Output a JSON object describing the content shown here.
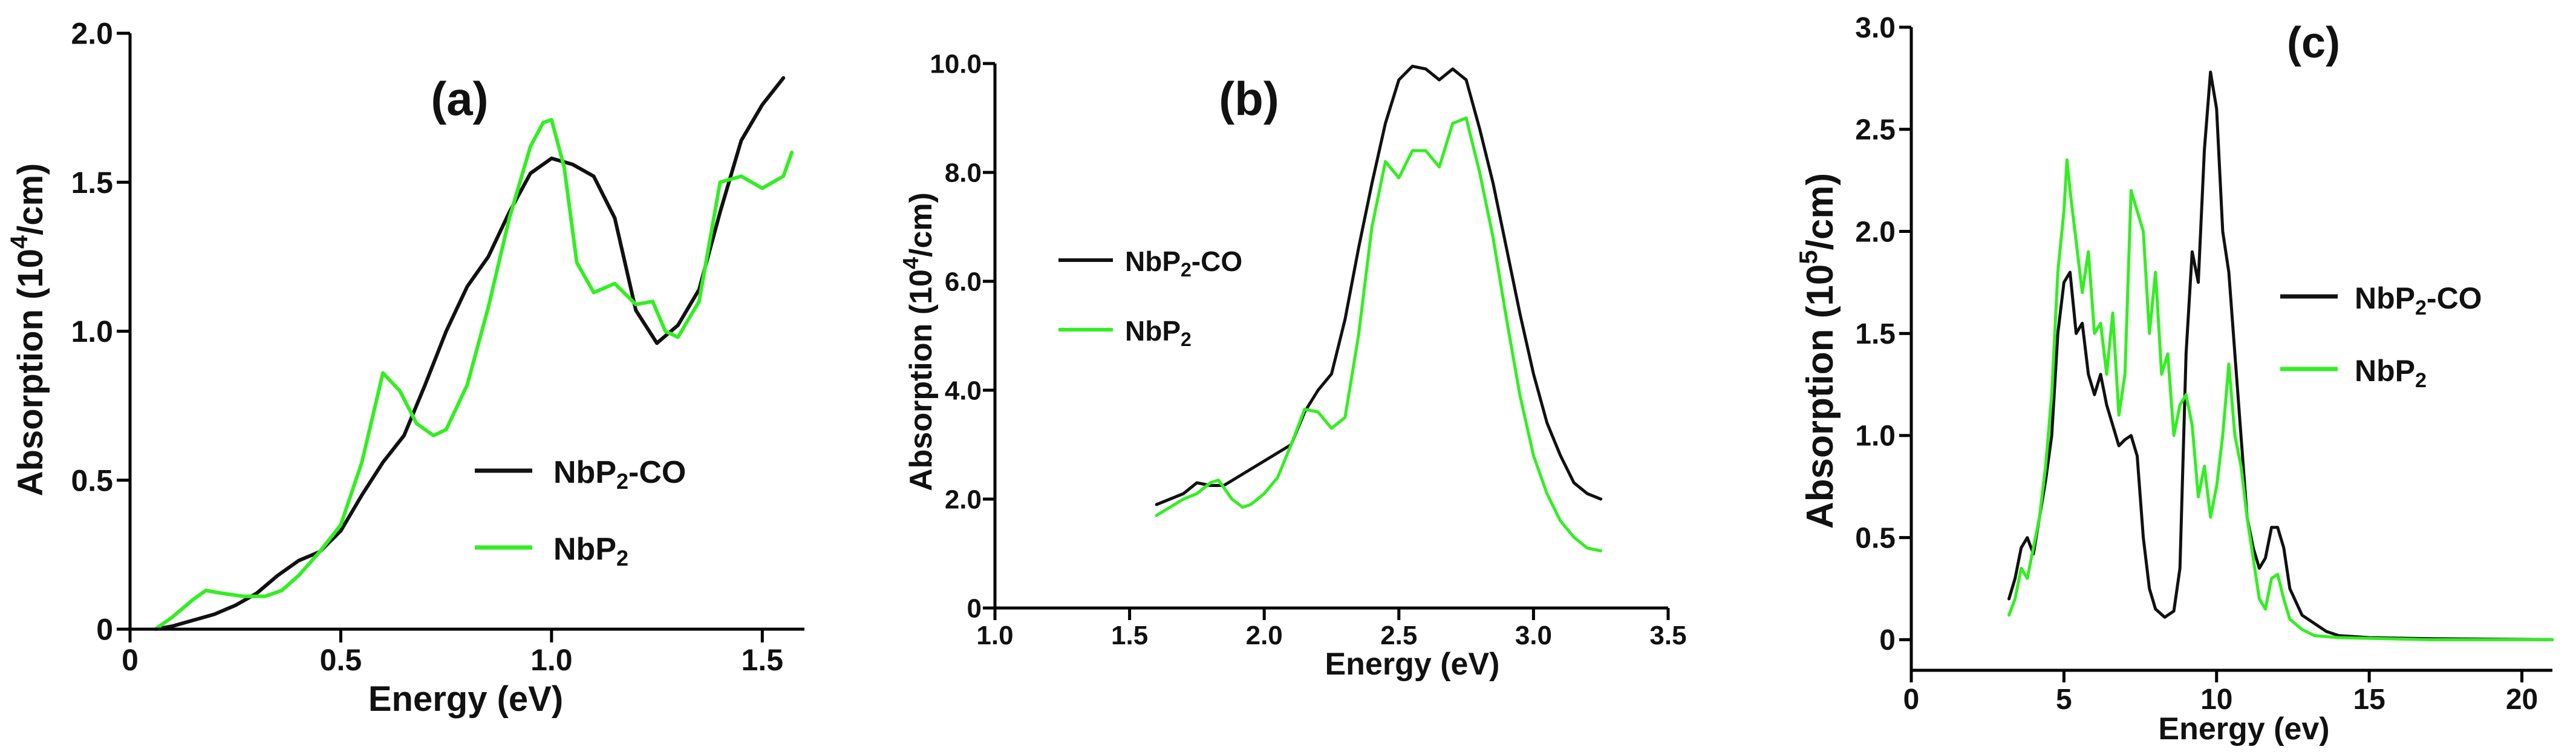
{
  "colors": {
    "co": "#111111",
    "pristine": "#33ee22"
  },
  "chart_data": [
    {
      "id": "a",
      "type": "line",
      "panel_label": "(a)",
      "xlabel": "Energy (eV)",
      "ylabel": {
        "base": "Absorption (10",
        "sup": "4",
        "tail": "/cm)"
      },
      "xlim": [
        0,
        1.6
      ],
      "ylim": [
        0,
        2.0
      ],
      "xticks": [
        0,
        0.5,
        1.0,
        1.5
      ],
      "xtick_labels": [
        "0",
        "0.5",
        "1.0",
        "1.5"
      ],
      "yticks": [
        0,
        0.5,
        1.0,
        1.5,
        2.0
      ],
      "ytick_labels": [
        "0",
        "0.5",
        "1.0",
        "1.5",
        "2.0"
      ],
      "legend": [
        {
          "base": "NbP",
          "sub": "2",
          "tail": "-CO",
          "color_key": "co"
        },
        {
          "base": "NbP",
          "sub": "2",
          "tail": "",
          "color_key": "pristine"
        }
      ],
      "series": [
        {
          "name": "NbP2-CO",
          "color_key": "co",
          "points": [
            [
              0.06,
              0.0
            ],
            [
              0.1,
              0.01
            ],
            [
              0.15,
              0.03
            ],
            [
              0.2,
              0.05
            ],
            [
              0.25,
              0.08
            ],
            [
              0.3,
              0.12
            ],
            [
              0.35,
              0.18
            ],
            [
              0.4,
              0.23
            ],
            [
              0.45,
              0.26
            ],
            [
              0.5,
              0.33
            ],
            [
              0.55,
              0.45
            ],
            [
              0.6,
              0.56
            ],
            [
              0.65,
              0.65
            ],
            [
              0.7,
              0.82
            ],
            [
              0.75,
              1.0
            ],
            [
              0.8,
              1.15
            ],
            [
              0.85,
              1.25
            ],
            [
              0.9,
              1.4
            ],
            [
              0.95,
              1.53
            ],
            [
              1.0,
              1.58
            ],
            [
              1.05,
              1.56
            ],
            [
              1.1,
              1.52
            ],
            [
              1.15,
              1.38
            ],
            [
              1.2,
              1.07
            ],
            [
              1.25,
              0.96
            ],
            [
              1.3,
              1.02
            ],
            [
              1.35,
              1.14
            ],
            [
              1.4,
              1.4
            ],
            [
              1.45,
              1.64
            ],
            [
              1.5,
              1.76
            ],
            [
              1.55,
              1.85
            ]
          ]
        },
        {
          "name": "NbP2",
          "color_key": "pristine",
          "points": [
            [
              0.06,
              0.0
            ],
            [
              0.1,
              0.04
            ],
            [
              0.15,
              0.1
            ],
            [
              0.18,
              0.13
            ],
            [
              0.22,
              0.12
            ],
            [
              0.27,
              0.11
            ],
            [
              0.32,
              0.11
            ],
            [
              0.36,
              0.13
            ],
            [
              0.4,
              0.18
            ],
            [
              0.45,
              0.26
            ],
            [
              0.5,
              0.35
            ],
            [
              0.55,
              0.56
            ],
            [
              0.6,
              0.86
            ],
            [
              0.64,
              0.8
            ],
            [
              0.68,
              0.69
            ],
            [
              0.72,
              0.65
            ],
            [
              0.75,
              0.67
            ],
            [
              0.8,
              0.82
            ],
            [
              0.85,
              1.08
            ],
            [
              0.9,
              1.38
            ],
            [
              0.95,
              1.62
            ],
            [
              0.98,
              1.7
            ],
            [
              1.0,
              1.71
            ],
            [
              1.03,
              1.55
            ],
            [
              1.06,
              1.23
            ],
            [
              1.1,
              1.13
            ],
            [
              1.15,
              1.16
            ],
            [
              1.2,
              1.09
            ],
            [
              1.24,
              1.1
            ],
            [
              1.27,
              1.0
            ],
            [
              1.3,
              0.98
            ],
            [
              1.35,
              1.1
            ],
            [
              1.4,
              1.5
            ],
            [
              1.45,
              1.52
            ],
            [
              1.5,
              1.48
            ],
            [
              1.55,
              1.52
            ],
            [
              1.57,
              1.6
            ]
          ]
        }
      ]
    },
    {
      "id": "b",
      "type": "line",
      "panel_label": "(b)",
      "xlabel": "Energy (eV)",
      "ylabel": {
        "base": "Absorption (10",
        "sup": "4",
        "tail": "/cm)"
      },
      "xlim": [
        1.0,
        3.5
      ],
      "ylim": [
        0,
        10.0
      ],
      "xticks": [
        1.0,
        1.5,
        2.0,
        2.5,
        3.0,
        3.5
      ],
      "xtick_labels": [
        "1.0",
        "1.5",
        "2.0",
        "2.5",
        "3.0",
        "3.5"
      ],
      "yticks": [
        0,
        2,
        4,
        6,
        8,
        10
      ],
      "ytick_labels": [
        "0",
        "2.0",
        "4.0",
        "6.0",
        "8.0",
        "10.0"
      ],
      "legend": [
        {
          "base": "NbP",
          "sub": "2",
          "tail": "-CO",
          "color_key": "co"
        },
        {
          "base": "NbP",
          "sub": "2",
          "tail": "",
          "color_key": "pristine"
        }
      ],
      "series": [
        {
          "name": "NbP2-CO",
          "color_key": "co",
          "points": [
            [
              1.6,
              1.9
            ],
            [
              1.65,
              2.0
            ],
            [
              1.7,
              2.1
            ],
            [
              1.75,
              2.3
            ],
            [
              1.8,
              2.25
            ],
            [
              1.85,
              2.25
            ],
            [
              1.9,
              2.4
            ],
            [
              2.0,
              2.7
            ],
            [
              2.1,
              3.0
            ],
            [
              2.15,
              3.6
            ],
            [
              2.2,
              4.0
            ],
            [
              2.25,
              4.3
            ],
            [
              2.3,
              5.3
            ],
            [
              2.35,
              6.6
            ],
            [
              2.4,
              7.8
            ],
            [
              2.45,
              8.9
            ],
            [
              2.5,
              9.7
            ],
            [
              2.55,
              9.95
            ],
            [
              2.6,
              9.9
            ],
            [
              2.65,
              9.7
            ],
            [
              2.7,
              9.9
            ],
            [
              2.75,
              9.7
            ],
            [
              2.8,
              8.8
            ],
            [
              2.85,
              7.8
            ],
            [
              2.9,
              6.6
            ],
            [
              2.95,
              5.4
            ],
            [
              3.0,
              4.3
            ],
            [
              3.05,
              3.4
            ],
            [
              3.1,
              2.8
            ],
            [
              3.15,
              2.3
            ],
            [
              3.2,
              2.1
            ],
            [
              3.25,
              2.0
            ]
          ]
        },
        {
          "name": "NbP2",
          "color_key": "pristine",
          "points": [
            [
              1.6,
              1.7
            ],
            [
              1.65,
              1.85
            ],
            [
              1.7,
              2.0
            ],
            [
              1.75,
              2.1
            ],
            [
              1.8,
              2.3
            ],
            [
              1.83,
              2.35
            ],
            [
              1.88,
              2.0
            ],
            [
              1.92,
              1.85
            ],
            [
              1.95,
              1.9
            ],
            [
              2.0,
              2.1
            ],
            [
              2.05,
              2.4
            ],
            [
              2.1,
              3.0
            ],
            [
              2.15,
              3.65
            ],
            [
              2.2,
              3.6
            ],
            [
              2.25,
              3.3
            ],
            [
              2.3,
              3.5
            ],
            [
              2.35,
              5.0
            ],
            [
              2.4,
              7.0
            ],
            [
              2.45,
              8.2
            ],
            [
              2.5,
              7.9
            ],
            [
              2.55,
              8.4
            ],
            [
              2.6,
              8.4
            ],
            [
              2.65,
              8.1
            ],
            [
              2.7,
              8.9
            ],
            [
              2.75,
              9.0
            ],
            [
              2.8,
              8.0
            ],
            [
              2.85,
              6.8
            ],
            [
              2.9,
              5.3
            ],
            [
              2.95,
              3.9
            ],
            [
              3.0,
              2.8
            ],
            [
              3.05,
              2.1
            ],
            [
              3.1,
              1.6
            ],
            [
              3.15,
              1.3
            ],
            [
              3.2,
              1.1
            ],
            [
              3.25,
              1.05
            ]
          ]
        }
      ]
    },
    {
      "id": "c",
      "type": "line",
      "panel_label": "(c)",
      "xlabel": "Energy (ev)",
      "ylabel": {
        "base": "Absorption (10",
        "sup": "5",
        "tail": "/cm)"
      },
      "xlim": [
        0,
        21
      ],
      "ylim": [
        -0.15,
        3.0
      ],
      "xticks": [
        0,
        5,
        10,
        15,
        20
      ],
      "xtick_labels": [
        "0",
        "5",
        "10",
        "15",
        "20"
      ],
      "yticks": [
        0,
        0.5,
        1.0,
        1.5,
        2.0,
        2.5,
        3.0
      ],
      "ytick_labels": [
        "0",
        "0.5",
        "1.0",
        "1.5",
        "2.0",
        "2.5",
        "3.0"
      ],
      "legend": [
        {
          "base": "NbP",
          "sub": "2",
          "tail": "-CO",
          "color_key": "co"
        },
        {
          "base": "NbP",
          "sub": "2",
          "tail": "",
          "color_key": "pristine"
        }
      ],
      "series": [
        {
          "name": "NbP2-CO",
          "color_key": "co",
          "points": [
            [
              3.2,
              0.2
            ],
            [
              3.4,
              0.3
            ],
            [
              3.6,
              0.45
            ],
            [
              3.8,
              0.5
            ],
            [
              4.0,
              0.42
            ],
            [
              4.2,
              0.6
            ],
            [
              4.4,
              0.78
            ],
            [
              4.6,
              1.0
            ],
            [
              4.8,
              1.5
            ],
            [
              5.0,
              1.75
            ],
            [
              5.2,
              1.8
            ],
            [
              5.4,
              1.5
            ],
            [
              5.6,
              1.55
            ],
            [
              5.8,
              1.3
            ],
            [
              6.0,
              1.2
            ],
            [
              6.2,
              1.3
            ],
            [
              6.4,
              1.15
            ],
            [
              6.6,
              1.05
            ],
            [
              6.8,
              0.95
            ],
            [
              7.0,
              0.98
            ],
            [
              7.2,
              1.0
            ],
            [
              7.4,
              0.9
            ],
            [
              7.6,
              0.5
            ],
            [
              7.8,
              0.25
            ],
            [
              8.0,
              0.15
            ],
            [
              8.3,
              0.11
            ],
            [
              8.6,
              0.14
            ],
            [
              8.8,
              0.35
            ],
            [
              9.0,
              1.4
            ],
            [
              9.2,
              1.9
            ],
            [
              9.4,
              1.75
            ],
            [
              9.6,
              2.4
            ],
            [
              9.8,
              2.78
            ],
            [
              10.0,
              2.6
            ],
            [
              10.2,
              2.0
            ],
            [
              10.4,
              1.8
            ],
            [
              10.6,
              1.4
            ],
            [
              10.8,
              1.0
            ],
            [
              11.0,
              0.6
            ],
            [
              11.2,
              0.45
            ],
            [
              11.4,
              0.35
            ],
            [
              11.6,
              0.4
            ],
            [
              11.8,
              0.55
            ],
            [
              12.0,
              0.55
            ],
            [
              12.2,
              0.45
            ],
            [
              12.4,
              0.25
            ],
            [
              12.8,
              0.12
            ],
            [
              13.2,
              0.08
            ],
            [
              13.6,
              0.04
            ],
            [
              14.0,
              0.02
            ],
            [
              15.0,
              0.01
            ],
            [
              17.0,
              0.005
            ],
            [
              21.0,
              0.0
            ]
          ]
        },
        {
          "name": "NbP2",
          "color_key": "pristine",
          "points": [
            [
              3.2,
              0.12
            ],
            [
              3.4,
              0.2
            ],
            [
              3.6,
              0.35
            ],
            [
              3.8,
              0.3
            ],
            [
              4.0,
              0.45
            ],
            [
              4.2,
              0.6
            ],
            [
              4.4,
              0.85
            ],
            [
              4.6,
              1.2
            ],
            [
              4.8,
              1.8
            ],
            [
              5.0,
              2.1
            ],
            [
              5.1,
              2.35
            ],
            [
              5.2,
              2.2
            ],
            [
              5.4,
              1.95
            ],
            [
              5.6,
              1.7
            ],
            [
              5.8,
              1.9
            ],
            [
              6.0,
              1.5
            ],
            [
              6.2,
              1.55
            ],
            [
              6.4,
              1.3
            ],
            [
              6.6,
              1.6
            ],
            [
              6.8,
              1.1
            ],
            [
              7.0,
              1.3
            ],
            [
              7.2,
              2.2
            ],
            [
              7.4,
              2.1
            ],
            [
              7.6,
              2.0
            ],
            [
              7.8,
              1.5
            ],
            [
              8.0,
              1.8
            ],
            [
              8.2,
              1.3
            ],
            [
              8.4,
              1.4
            ],
            [
              8.6,
              1.0
            ],
            [
              8.8,
              1.15
            ],
            [
              9.0,
              1.2
            ],
            [
              9.2,
              1.05
            ],
            [
              9.4,
              0.7
            ],
            [
              9.6,
              0.85
            ],
            [
              9.8,
              0.6
            ],
            [
              10.0,
              0.75
            ],
            [
              10.2,
              1.0
            ],
            [
              10.4,
              1.35
            ],
            [
              10.6,
              1.0
            ],
            [
              10.8,
              0.85
            ],
            [
              11.0,
              0.6
            ],
            [
              11.2,
              0.4
            ],
            [
              11.4,
              0.2
            ],
            [
              11.6,
              0.15
            ],
            [
              11.8,
              0.3
            ],
            [
              12.0,
              0.32
            ],
            [
              12.2,
              0.2
            ],
            [
              12.4,
              0.1
            ],
            [
              12.8,
              0.05
            ],
            [
              13.2,
              0.02
            ],
            [
              14.0,
              0.01
            ],
            [
              17.0,
              0.0
            ],
            [
              21.0,
              0.0
            ]
          ]
        }
      ]
    }
  ]
}
